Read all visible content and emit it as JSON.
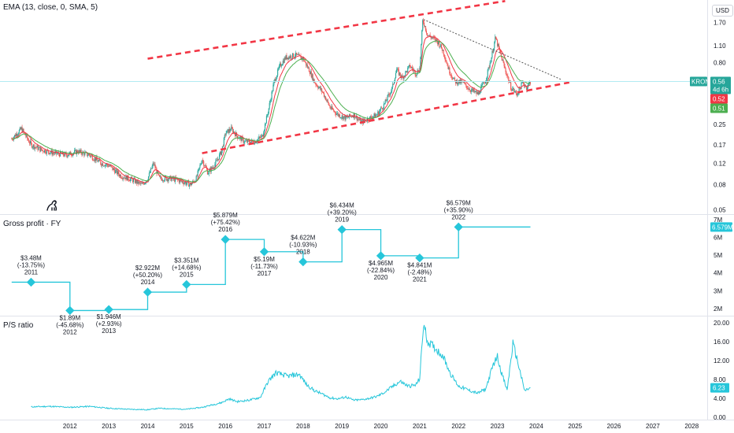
{
  "indicator_label": "EMA (13, close, 0, SMA, 5)",
  "currency_button": "USD",
  "ticker": "KRONT",
  "colors": {
    "candle_up": "#26a69a",
    "candle_down": "#ef5350",
    "ema_fast": "#f23645",
    "ema_slow": "#4caf50",
    "channel": "#f23645",
    "resistance": "#555555",
    "line_series": "#26c6da",
    "separator": "#e0e3eb",
    "current_line": "#b2ebf2"
  },
  "chart_data": [
    {
      "type": "candlestick",
      "name": "KRONT",
      "scale": "log",
      "price_ticks": [
        "1.70",
        "1.10",
        "0.80",
        "0.52",
        "0.25",
        "0.17",
        "0.12",
        "0.08",
        "0.05"
      ],
      "price_tick_values": [
        1.7,
        1.1,
        0.8,
        0.52,
        0.25,
        0.17,
        0.12,
        0.08,
        0.05
      ],
      "ylim": [
        0.046,
        2.6
      ],
      "xlim": [
        2010.2,
        2028.4
      ],
      "price_path": [
        [
          2010.5,
          0.19
        ],
        [
          2010.75,
          0.23
        ],
        [
          2011.0,
          0.17
        ],
        [
          2011.25,
          0.155
        ],
        [
          2011.6,
          0.145
        ],
        [
          2011.9,
          0.14
        ],
        [
          2012.2,
          0.15
        ],
        [
          2012.5,
          0.14
        ],
        [
          2012.8,
          0.12
        ],
        [
          2013.0,
          0.115
        ],
        [
          2013.3,
          0.095
        ],
        [
          2013.6,
          0.088
        ],
        [
          2013.85,
          0.08
        ],
        [
          2014.0,
          0.09
        ],
        [
          2014.15,
          0.12
        ],
        [
          2014.3,
          0.09
        ],
        [
          2014.6,
          0.09
        ],
        [
          2014.9,
          0.085
        ],
        [
          2015.1,
          0.08
        ],
        [
          2015.25,
          0.09
        ],
        [
          2015.4,
          0.13
        ],
        [
          2015.55,
          0.1
        ],
        [
          2015.75,
          0.12
        ],
        [
          2015.9,
          0.15
        ],
        [
          2016.0,
          0.21
        ],
        [
          2016.15,
          0.23
        ],
        [
          2016.3,
          0.2
        ],
        [
          2016.5,
          0.18
        ],
        [
          2016.75,
          0.18
        ],
        [
          2016.95,
          0.2
        ],
        [
          2017.1,
          0.32
        ],
        [
          2017.25,
          0.55
        ],
        [
          2017.4,
          0.75
        ],
        [
          2017.55,
          0.88
        ],
        [
          2017.8,
          0.92
        ],
        [
          2018.0,
          0.86
        ],
        [
          2018.15,
          0.7
        ],
        [
          2018.3,
          0.55
        ],
        [
          2018.5,
          0.46
        ],
        [
          2018.7,
          0.34
        ],
        [
          2018.9,
          0.3
        ],
        [
          2019.1,
          0.28
        ],
        [
          2019.3,
          0.3
        ],
        [
          2019.5,
          0.26
        ],
        [
          2019.7,
          0.28
        ],
        [
          2019.9,
          0.3
        ],
        [
          2020.1,
          0.37
        ],
        [
          2020.3,
          0.5
        ],
        [
          2020.4,
          0.7
        ],
        [
          2020.55,
          0.6
        ],
        [
          2020.75,
          0.75
        ],
        [
          2020.9,
          0.65
        ],
        [
          2021.0,
          0.72
        ],
        [
          2021.08,
          1.8
        ],
        [
          2021.2,
          1.35
        ],
        [
          2021.45,
          1.2
        ],
        [
          2021.6,
          1.0
        ],
        [
          2021.75,
          0.7
        ],
        [
          2021.9,
          0.56
        ],
        [
          2022.1,
          0.55
        ],
        [
          2022.3,
          0.48
        ],
        [
          2022.5,
          0.44
        ],
        [
          2022.7,
          0.58
        ],
        [
          2022.85,
          0.9
        ],
        [
          2022.95,
          1.28
        ],
        [
          2023.05,
          1.0
        ],
        [
          2023.2,
          0.7
        ],
        [
          2023.35,
          0.5
        ],
        [
          2023.5,
          0.44
        ],
        [
          2023.65,
          0.55
        ],
        [
          2023.75,
          0.5
        ],
        [
          2023.85,
          0.56
        ]
      ],
      "channel_upper": [
        [
          2014.0,
          0.86
        ],
        [
          2023.2,
          2.55
        ]
      ],
      "channel_lower": [
        [
          2015.4,
          0.145
        ],
        [
          2024.85,
          0.55
        ]
      ],
      "resistance_line": [
        [
          2021.1,
          1.8
        ],
        [
          2024.65,
          0.58
        ]
      ],
      "price_labels": {
        "last": "0.56",
        "countdown": "4d 6h",
        "ema_fast": "0.52",
        "ema_slow": "0.51"
      }
    },
    {
      "type": "step",
      "title": "Gross profit · FY",
      "ylabel_ticks": [
        "7M",
        "6M",
        "5M",
        "4M",
        "3M",
        "2M"
      ],
      "ytick_values": [
        7,
        6,
        5,
        4,
        3,
        2
      ],
      "ylim": [
        1.6,
        7.3
      ],
      "last_label": "6.579M",
      "x": [
        2011,
        2012,
        2013,
        2014,
        2015,
        2016,
        2017,
        2018,
        2019,
        2020,
        2021,
        2022
      ],
      "values": [
        3.48,
        1.89,
        1.946,
        2.922,
        3.351,
        5.879,
        5.19,
        4.622,
        6.434,
        4.965,
        4.841,
        6.579
      ],
      "labels": [
        {
          "value": "$3.48M",
          "change": "(-13.75%)",
          "year": "2011"
        },
        {
          "value": "$1.89M",
          "change": "(-45.68%)",
          "year": "2012"
        },
        {
          "value": "$1.946M",
          "change": "(+2.93%)",
          "year": "2013"
        },
        {
          "value": "$2.922M",
          "change": "(+50.20%)",
          "year": "2014"
        },
        {
          "value": "$3.351M",
          "change": "(+14.68%)",
          "year": "2015"
        },
        {
          "value": "$5.879M",
          "change": "(+75.42%)",
          "year": "2016"
        },
        {
          "value": "$5.19M",
          "change": "(-11.73%)",
          "year": "2017"
        },
        {
          "value": "$4.622M",
          "change": "(-10.93%)",
          "year": "2018"
        },
        {
          "value": "$6.434M",
          "change": "(+39.20%)",
          "year": "2019"
        },
        {
          "value": "$4.965M",
          "change": "(-22.84%)",
          "year": "2020"
        },
        {
          "value": "$4.841M",
          "change": "(-2.48%)",
          "year": "2021"
        },
        {
          "value": "$6.579M",
          "change": "(+35.90%)",
          "year": "2022"
        }
      ]
    },
    {
      "type": "line",
      "title": "P/S ratio",
      "ylabel_ticks": [
        "20.00",
        "16.00",
        "12.00",
        "8.00",
        "4.00",
        "0.00"
      ],
      "ytick_values": [
        20,
        16,
        12,
        8,
        4,
        0
      ],
      "ylim": [
        -0.5,
        21.5
      ],
      "last_label": "6.23",
      "points": [
        [
          2011.0,
          2.2
        ],
        [
          2011.5,
          2.3
        ],
        [
          2012.0,
          2.1
        ],
        [
          2012.5,
          2.3
        ],
        [
          2013.0,
          1.9
        ],
        [
          2013.5,
          1.7
        ],
        [
          2014.0,
          1.6
        ],
        [
          2014.3,
          1.9
        ],
        [
          2014.6,
          1.8
        ],
        [
          2015.0,
          1.7
        ],
        [
          2015.4,
          2.1
        ],
        [
          2015.7,
          2.7
        ],
        [
          2015.9,
          3.1
        ],
        [
          2016.1,
          3.9
        ],
        [
          2016.3,
          3.3
        ],
        [
          2016.6,
          3.6
        ],
        [
          2016.9,
          4.2
        ],
        [
          2017.1,
          7.6
        ],
        [
          2017.3,
          9.4
        ],
        [
          2017.6,
          8.7
        ],
        [
          2017.9,
          9.1
        ],
        [
          2018.1,
          6.8
        ],
        [
          2018.3,
          5.6
        ],
        [
          2018.5,
          4.9
        ],
        [
          2018.7,
          4.1
        ],
        [
          2018.9,
          3.9
        ],
        [
          2019.1,
          4.3
        ],
        [
          2019.3,
          3.6
        ],
        [
          2019.5,
          3.7
        ],
        [
          2019.7,
          4.0
        ],
        [
          2019.9,
          4.4
        ],
        [
          2020.1,
          5.3
        ],
        [
          2020.3,
          6.5
        ],
        [
          2020.5,
          7.6
        ],
        [
          2020.7,
          6.6
        ],
        [
          2020.9,
          6.8
        ],
        [
          2021.0,
          8.2
        ],
        [
          2021.1,
          19.8
        ],
        [
          2021.2,
          16.1
        ],
        [
          2021.4,
          14.6
        ],
        [
          2021.6,
          13.0
        ],
        [
          2021.8,
          9.1
        ],
        [
          2022.0,
          6.6
        ],
        [
          2022.3,
          5.6
        ],
        [
          2022.5,
          5.1
        ],
        [
          2022.7,
          6.0
        ],
        [
          2022.9,
          11.3
        ],
        [
          2023.0,
          12.9
        ],
        [
          2023.1,
          9.6
        ],
        [
          2023.25,
          5.7
        ],
        [
          2023.4,
          15.6
        ],
        [
          2023.5,
          12.5
        ],
        [
          2023.6,
          9.1
        ],
        [
          2023.7,
          5.6
        ],
        [
          2023.85,
          6.23
        ]
      ]
    }
  ],
  "x_axis": {
    "ticks": [
      "2012",
      "2013",
      "2014",
      "2015",
      "2016",
      "2017",
      "2018",
      "2019",
      "2020",
      "2021",
      "2022",
      "2023",
      "2024",
      "2025",
      "2026",
      "2027",
      "2028"
    ],
    "tick_values": [
      2012,
      2013,
      2014,
      2015,
      2016,
      2017,
      2018,
      2019,
      2020,
      2021,
      2022,
      2023,
      2024,
      2025,
      2026,
      2027,
      2028
    ]
  }
}
